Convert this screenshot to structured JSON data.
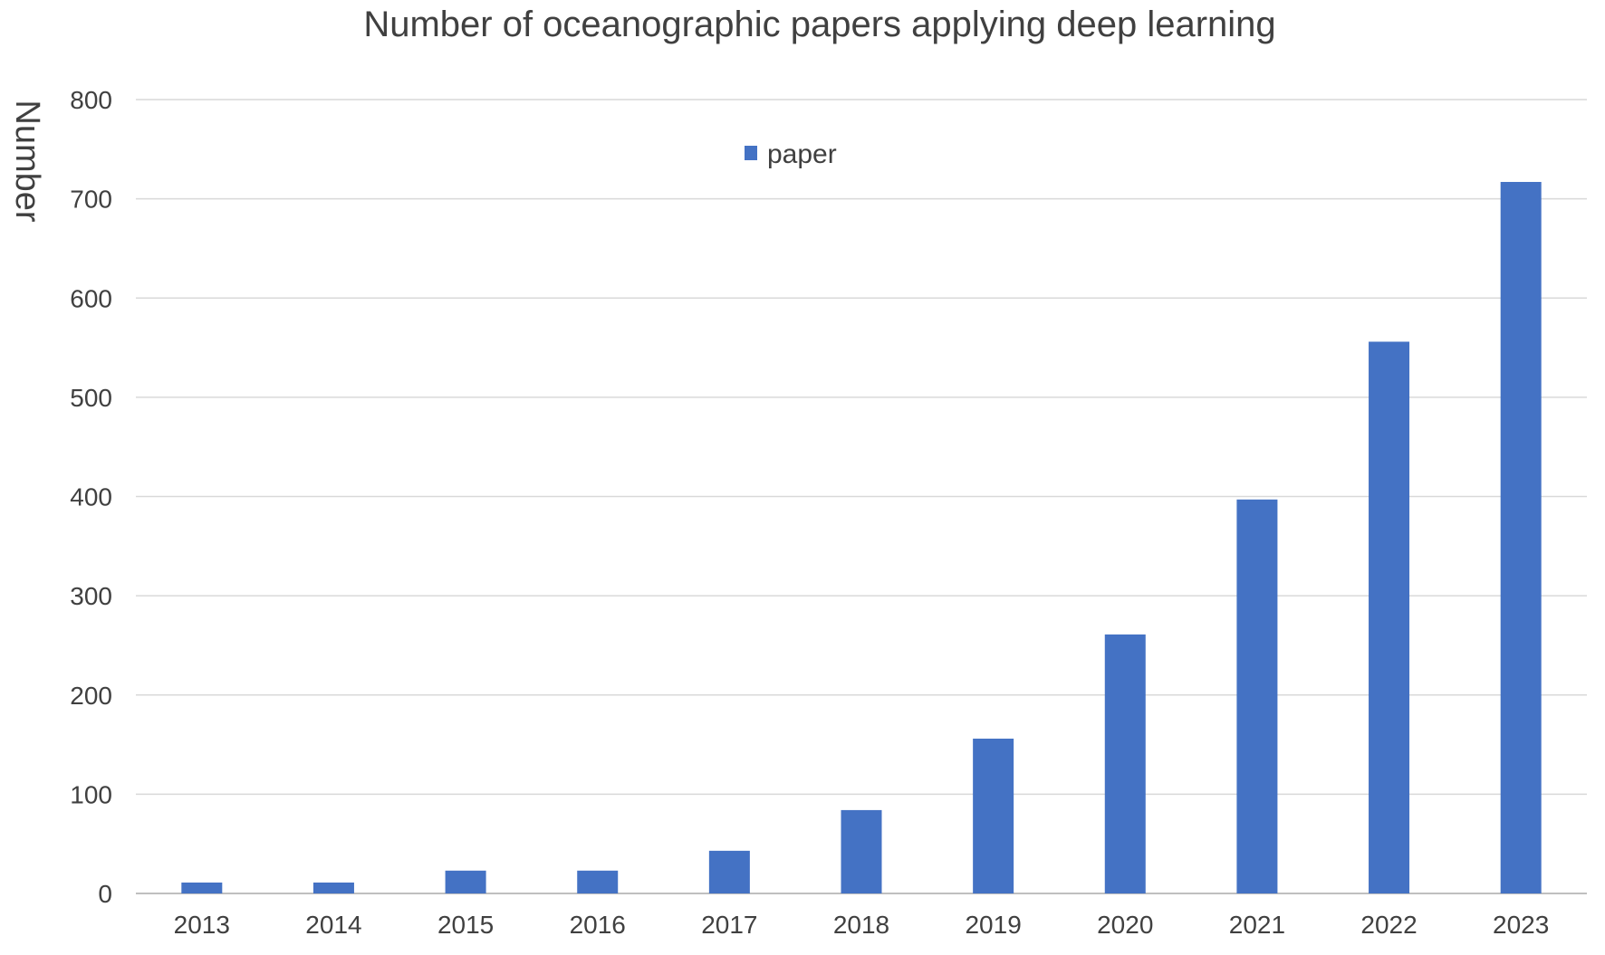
{
  "chart_data": {
    "type": "bar",
    "title": "Number of oceanographic papers applying deep learning",
    "xlabel": "",
    "ylabel": "Number",
    "categories": [
      "2013",
      "2014",
      "2015",
      "2016",
      "2017",
      "2018",
      "2019",
      "2020",
      "2021",
      "2022",
      "2023"
    ],
    "series": [
      {
        "name": "paper",
        "values": [
          11,
          11,
          23,
          23,
          43,
          84,
          156,
          261,
          397,
          556,
          717
        ]
      }
    ],
    "ylim": [
      0,
      800
    ],
    "yticks": [
      "0",
      "100",
      "200",
      "300",
      "400",
      "500",
      "600",
      "700",
      "800"
    ],
    "grid": true,
    "legend_position": "top-center",
    "colors": {
      "bar": "#4472C4",
      "grid": "#d9d9d9",
      "axis": "#bfbfbf",
      "text": "#404040"
    }
  }
}
